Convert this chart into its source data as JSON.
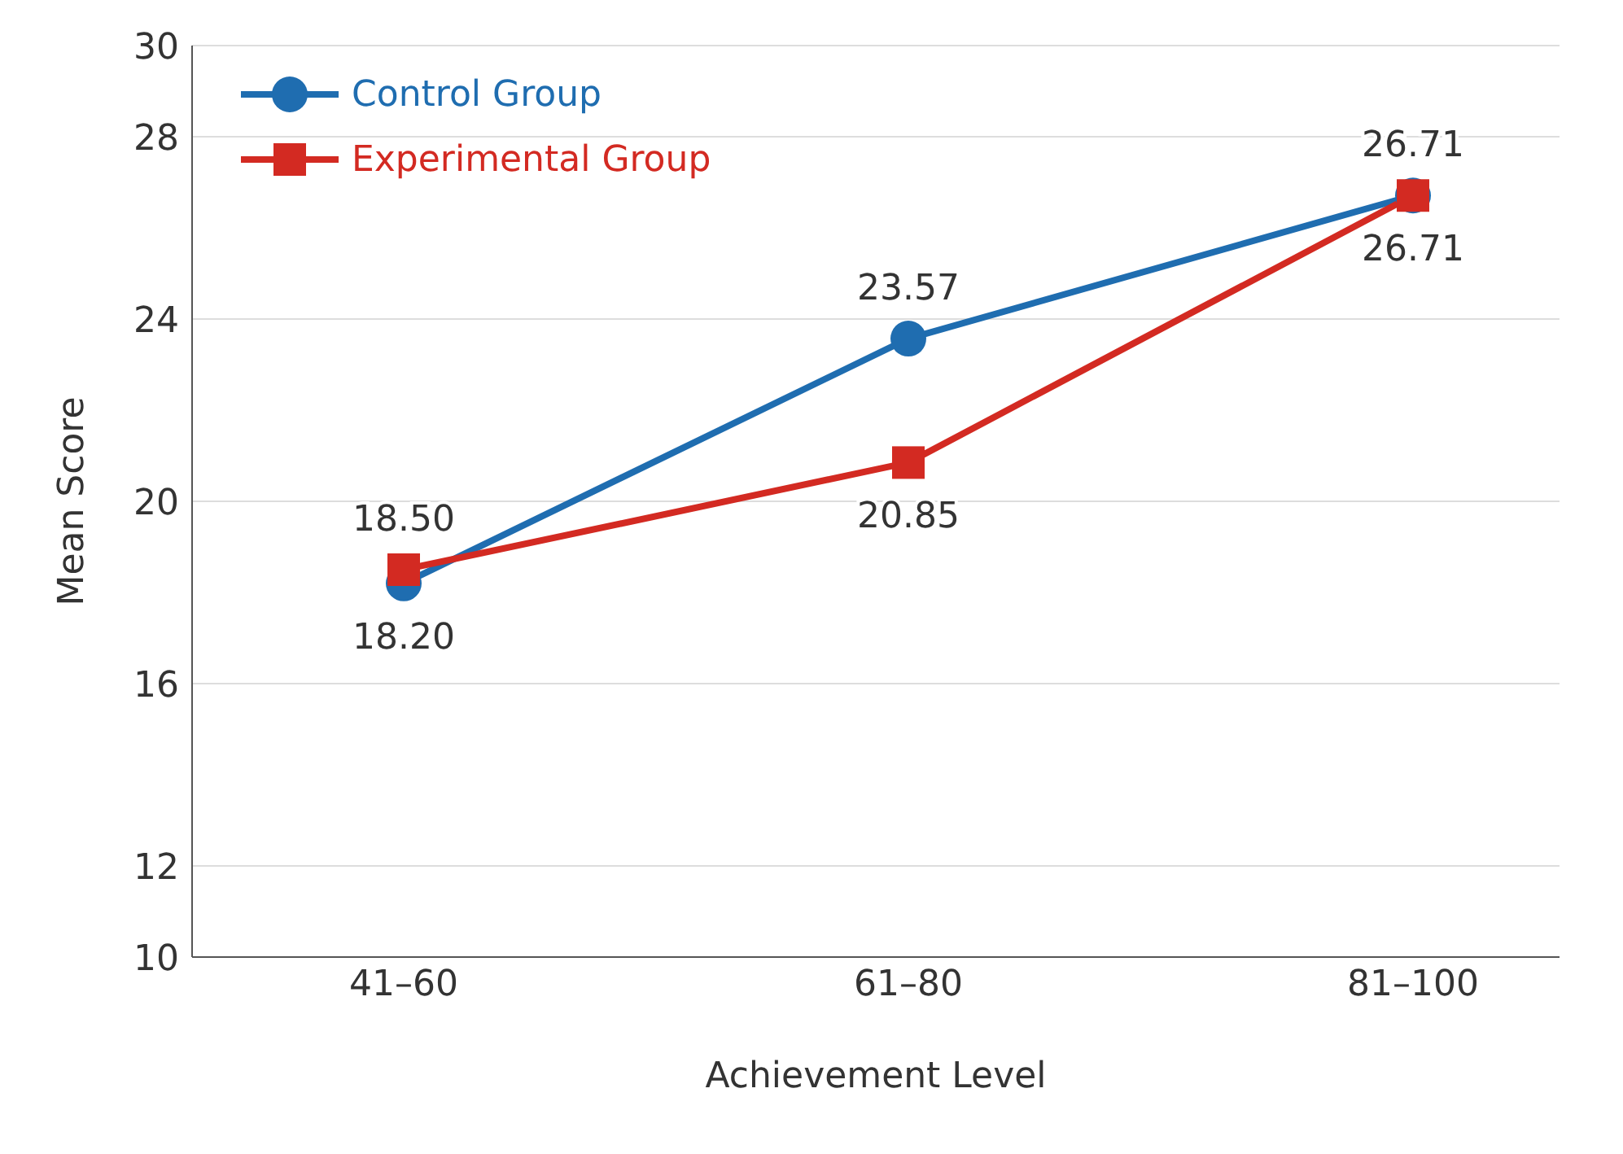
{
  "chart_data": {
    "type": "line",
    "xlabel": "Achievement Level",
    "ylabel": "Mean Score",
    "categories": [
      "41–60",
      "61–80",
      "81–100"
    ],
    "series": [
      {
        "name": "Control Group",
        "color": "#1f6db0",
        "marker": "circle",
        "values": [
          18.2,
          23.57,
          26.71
        ],
        "value_labels": [
          "18.20",
          "23.57",
          "26.71"
        ]
      },
      {
        "name": "Experimental Group",
        "color": "#d32a22",
        "marker": "square",
        "values": [
          18.5,
          20.85,
          26.71
        ],
        "value_labels": [
          "18.50",
          "20.85",
          "26.71"
        ]
      }
    ],
    "yticks": [
      10,
      12,
      16,
      20,
      24,
      28,
      30
    ],
    "ylim": [
      10,
      30
    ],
    "grid": "y",
    "legend": "top left"
  }
}
